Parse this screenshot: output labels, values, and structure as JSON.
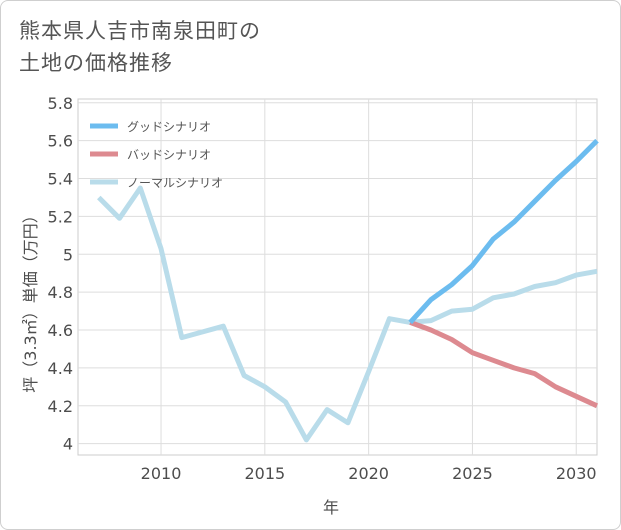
{
  "title_lines": [
    "熊本県人吉市南泉田町の",
    "土地の価格推移"
  ],
  "chart_data": {
    "type": "line",
    "title": "熊本県人吉市南泉田町の土地の価格推移",
    "xlabel": "年",
    "ylabel": "坪（3.3㎡）単価（万円）",
    "xlim": [
      2006,
      2031
    ],
    "ylim": [
      3.94,
      5.82
    ],
    "xticks": [
      2010,
      2015,
      2020,
      2025,
      2030
    ],
    "xtick_labels": [
      "2010",
      "2015",
      "2020",
      "2025",
      "2030"
    ],
    "yticks": [
      4,
      4.2,
      4.4,
      4.6,
      4.8,
      5,
      5.2,
      5.4,
      5.6,
      5.8
    ],
    "ytick_labels": [
      "4",
      "4.2",
      "4.4",
      "4.6",
      "4.8",
      "5",
      "5.2",
      "5.4",
      "5.6",
      "5.8"
    ],
    "legend_position": "top-left",
    "series": [
      {
        "name": "グッドシナリオ",
        "color": "#6cbcef",
        "x": [
          2022,
          2023,
          2024,
          2025,
          2026,
          2027,
          2028,
          2029,
          2030,
          2031
        ],
        "values": [
          4.64,
          4.76,
          4.84,
          4.94,
          5.08,
          5.17,
          5.28,
          5.39,
          5.49,
          5.6
        ]
      },
      {
        "name": "バッドシナリオ",
        "color": "#dd8a90",
        "x": [
          2022,
          2023,
          2024,
          2025,
          2026,
          2027,
          2028,
          2029,
          2030,
          2031
        ],
        "values": [
          4.64,
          4.6,
          4.55,
          4.48,
          4.44,
          4.4,
          4.37,
          4.3,
          4.25,
          4.2
        ]
      },
      {
        "name": "ノーマルシナリオ",
        "color": "#b9dcea",
        "x": [
          2007,
          2008,
          2009,
          2010,
          2011,
          2012,
          2013,
          2014,
          2015,
          2016,
          2017,
          2018,
          2019,
          2020,
          2021,
          2022,
          2023,
          2024,
          2025,
          2026,
          2027,
          2028,
          2029,
          2030,
          2031
        ],
        "values": [
          5.3,
          5.19,
          5.35,
          5.03,
          4.56,
          4.59,
          4.62,
          4.36,
          4.3,
          4.22,
          4.02,
          4.18,
          4.11,
          4.38,
          4.66,
          4.64,
          4.65,
          4.7,
          4.71,
          4.77,
          4.79,
          4.83,
          4.85,
          4.89,
          4.91
        ]
      }
    ]
  }
}
